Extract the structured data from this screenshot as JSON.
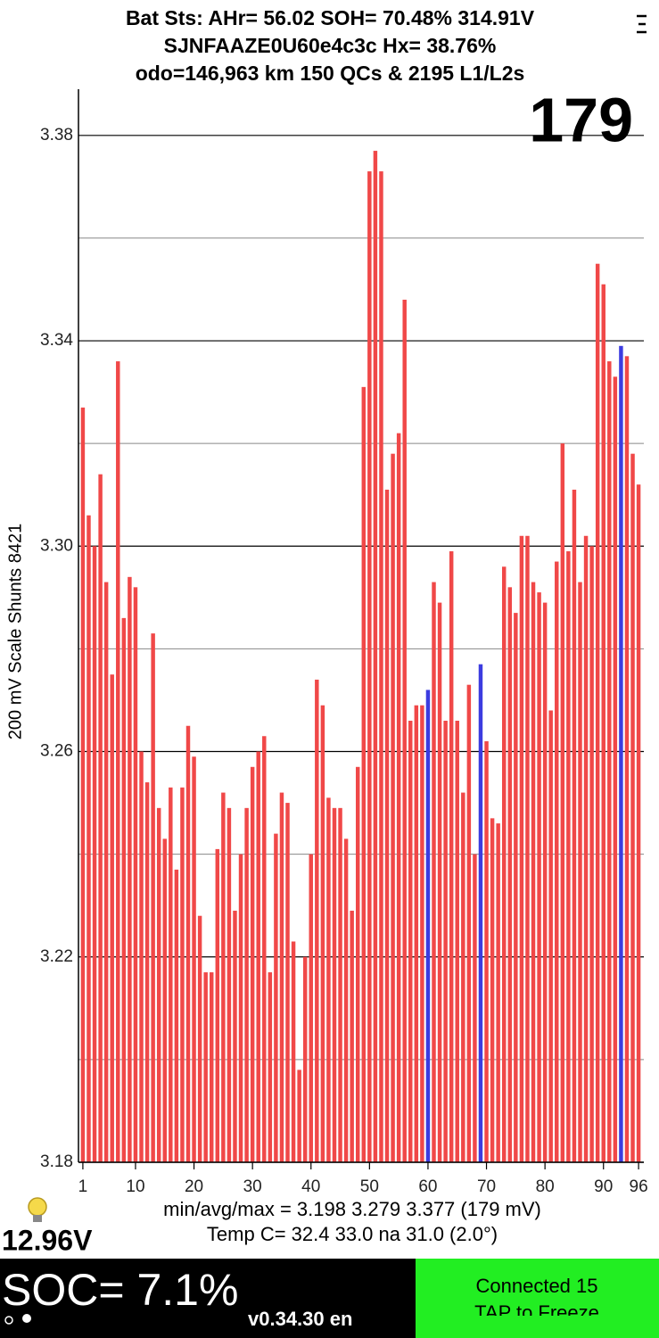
{
  "header": {
    "line1": "Bat Sts:  AHr= 56.02  SOH= 70.48%   314.91V",
    "line2": "SJNFAAZE0U60e4c3c   Hx= 38.76%",
    "line3": "odo=146,963 km  150 QCs & 2195 L1/L2s"
  },
  "chart_data": {
    "type": "bar",
    "annotation": "179",
    "y_label": "200 mV Scale   Shunts 8421",
    "x": [
      1,
      2,
      3,
      4,
      5,
      6,
      7,
      8,
      9,
      10,
      11,
      12,
      13,
      14,
      15,
      16,
      17,
      18,
      19,
      20,
      21,
      22,
      23,
      24,
      25,
      26,
      27,
      28,
      29,
      30,
      31,
      32,
      33,
      34,
      35,
      36,
      37,
      38,
      39,
      40,
      41,
      42,
      43,
      44,
      45,
      46,
      47,
      48,
      49,
      50,
      51,
      52,
      53,
      54,
      55,
      56,
      57,
      58,
      59,
      60,
      61,
      62,
      63,
      64,
      65,
      66,
      67,
      68,
      69,
      70,
      71,
      72,
      73,
      74,
      75,
      76,
      77,
      78,
      79,
      80,
      81,
      82,
      83,
      84,
      85,
      86,
      87,
      88,
      89,
      90,
      91,
      92,
      93,
      94,
      95,
      96
    ],
    "values": [
      3.327,
      3.306,
      3.3,
      3.314,
      3.293,
      3.275,
      3.336,
      3.286,
      3.294,
      3.292,
      3.26,
      3.254,
      3.283,
      3.249,
      3.243,
      3.253,
      3.237,
      3.253,
      3.265,
      3.259,
      3.228,
      3.217,
      3.217,
      3.241,
      3.252,
      3.249,
      3.229,
      3.24,
      3.249,
      3.257,
      3.26,
      3.263,
      3.217,
      3.244,
      3.252,
      3.25,
      3.223,
      3.198,
      3.22,
      3.24,
      3.274,
      3.269,
      3.251,
      3.249,
      3.249,
      3.243,
      3.229,
      3.257,
      3.331,
      3.373,
      3.377,
      3.373,
      3.311,
      3.318,
      3.322,
      3.348,
      3.266,
      3.269,
      3.269,
      3.272,
      3.293,
      3.289,
      3.266,
      3.299,
      3.266,
      3.252,
      3.273,
      3.24,
      3.277,
      3.262,
      3.247,
      3.246,
      3.296,
      3.292,
      3.287,
      3.302,
      3.302,
      3.293,
      3.291,
      3.289,
      3.268,
      3.297,
      3.32,
      3.299,
      3.311,
      3.293,
      3.302,
      3.3,
      3.355,
      3.351,
      3.336,
      3.333,
      3.339,
      3.337,
      3.318,
      3.312
    ],
    "colors": [
      "#f04848",
      "#f04848",
      "#f04848",
      "#f04848",
      "#f04848",
      "#f04848",
      "#f04848",
      "#f04848",
      "#f04848",
      "#f04848",
      "#f04848",
      "#f04848",
      "#f04848",
      "#f04848",
      "#f04848",
      "#f04848",
      "#f04848",
      "#f04848",
      "#f04848",
      "#f04848",
      "#f04848",
      "#f04848",
      "#f04848",
      "#f04848",
      "#f04848",
      "#f04848",
      "#f04848",
      "#f04848",
      "#f04848",
      "#f04848",
      "#f04848",
      "#f04848",
      "#f04848",
      "#f04848",
      "#f04848",
      "#f04848",
      "#f04848",
      "#f04848",
      "#f04848",
      "#f04848",
      "#f04848",
      "#f04848",
      "#f04848",
      "#f04848",
      "#f04848",
      "#f04848",
      "#f04848",
      "#f04848",
      "#f04848",
      "#f04848",
      "#f04848",
      "#f04848",
      "#f04848",
      "#f04848",
      "#f04848",
      "#f04848",
      "#f04848",
      "#f04848",
      "#f04848",
      "#3c3ce0",
      "#f04848",
      "#f04848",
      "#f04848",
      "#f04848",
      "#f04848",
      "#f04848",
      "#f04848",
      "#f04848",
      "#3c3ce0",
      "#f04848",
      "#f04848",
      "#f04848",
      "#f04848",
      "#f04848",
      "#f04848",
      "#f04848",
      "#f04848",
      "#f04848",
      "#f04848",
      "#f04848",
      "#f04848",
      "#f04848",
      "#f04848",
      "#f04848",
      "#f04848",
      "#f04848",
      "#f04848",
      "#f04848",
      "#f04848",
      "#f04848",
      "#f04848",
      "#f04848",
      "#3c3ce0",
      "#f04848",
      "#f04848",
      "#f04848"
    ],
    "xlim": [
      0.25,
      96.9
    ],
    "xticks": [
      1,
      10,
      20,
      30,
      40,
      50,
      60,
      70,
      80,
      90,
      96
    ],
    "ylim": [
      3.18,
      3.389
    ],
    "yticks": [
      3.18,
      3.22,
      3.26,
      {
        "value": 3.3,
        "label": "3.30"
      },
      3.34,
      3.38
    ],
    "minor_yticks": [
      3.2,
      3.24,
      3.28,
      3.32,
      3.36
    ],
    "grid": true
  },
  "footer": {
    "bat_voltage": "12.96V",
    "stats": "min/avg/max = 3.198 3.279 3.377  (179 mV)",
    "temp": "Temp C= 32.4  33.0  na  31.0  (2.0°)",
    "soc": "SOC= 7.1%",
    "version": "v0.34.30 en",
    "status_line1": "Connected 15",
    "status_line2": "TAP to Freeze"
  }
}
